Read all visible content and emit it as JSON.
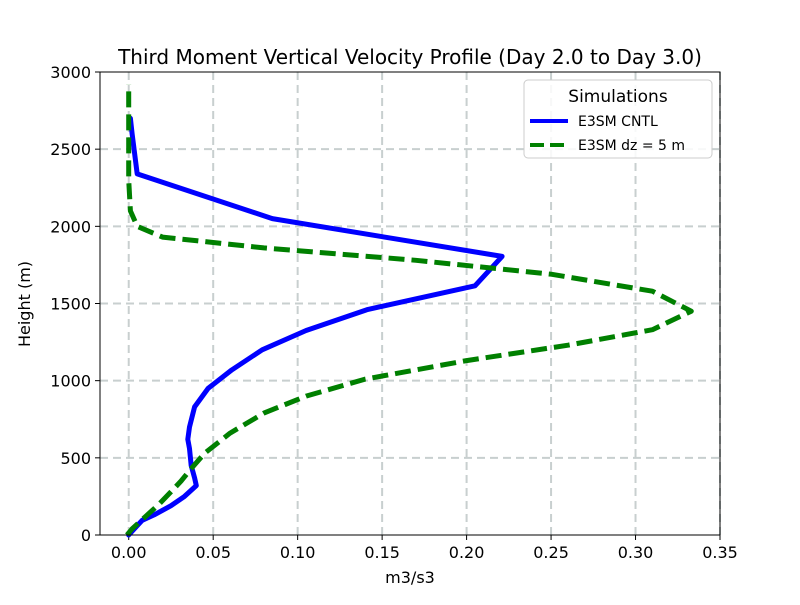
{
  "chart_data": {
    "type": "line",
    "title": "Third Moment Vertical Velocity Profile (Day 2.0 to Day 3.0)",
    "xlabel": "m3/s3",
    "ylabel": "Height (m)",
    "xlim": [
      -0.017,
      0.35
    ],
    "ylim": [
      0,
      3000
    ],
    "xticks": [
      0.0,
      0.05,
      0.1,
      0.15,
      0.2,
      0.25,
      0.3,
      0.35
    ],
    "xtick_labels": [
      "0.00",
      "0.05",
      "0.10",
      "0.15",
      "0.20",
      "0.25",
      "0.30",
      "0.35"
    ],
    "yticks": [
      0,
      500,
      1000,
      1500,
      2000,
      2500,
      3000
    ],
    "ytick_labels": [
      "0",
      "500",
      "1000",
      "1500",
      "2000",
      "2500",
      "3000"
    ],
    "grid": true,
    "legend": {
      "title": "Simulations",
      "location": "upper right"
    },
    "series": [
      {
        "name": "E3SM CNTL",
        "color": "#0000ff",
        "style": "solid",
        "points": [
          [
            0.0,
            0
          ],
          [
            0.005,
            60
          ],
          [
            0.008,
            95
          ],
          [
            0.015,
            130
          ],
          [
            0.025,
            190
          ],
          [
            0.033,
            250
          ],
          [
            0.04,
            320
          ],
          [
            0.039,
            370
          ],
          [
            0.037,
            450
          ],
          [
            0.036,
            560
          ],
          [
            0.035,
            620
          ],
          [
            0.036,
            700
          ],
          [
            0.039,
            830
          ],
          [
            0.047,
            950
          ],
          [
            0.061,
            1070
          ],
          [
            0.079,
            1200
          ],
          [
            0.105,
            1325
          ],
          [
            0.141,
            1460
          ],
          [
            0.205,
            1615
          ],
          [
            0.221,
            1805
          ],
          [
            0.085,
            2050
          ],
          [
            0.005,
            2340
          ],
          [
            0.002,
            2600
          ],
          [
            0.001,
            2700
          ]
        ]
      },
      {
        "name": "E3SM dz = 5 m",
        "color": "#008000",
        "style": "dashed",
        "points": [
          [
            -0.001,
            0
          ],
          [
            0.002,
            40
          ],
          [
            0.007,
            90
          ],
          [
            0.012,
            140
          ],
          [
            0.018,
            200
          ],
          [
            0.025,
            280
          ],
          [
            0.031,
            350
          ],
          [
            0.037,
            430
          ],
          [
            0.045,
            530
          ],
          [
            0.06,
            660
          ],
          [
            0.08,
            790
          ],
          [
            0.105,
            900
          ],
          [
            0.14,
            1010
          ],
          [
            0.2,
            1130
          ],
          [
            0.26,
            1230
          ],
          [
            0.31,
            1330
          ],
          [
            0.333,
            1450
          ],
          [
            0.31,
            1580
          ],
          [
            0.25,
            1690
          ],
          [
            0.17,
            1780
          ],
          [
            0.08,
            1860
          ],
          [
            0.02,
            1930
          ],
          [
            0.005,
            2000
          ],
          [
            0.001,
            2100
          ],
          [
            0.0,
            2300
          ],
          [
            0.0,
            2600
          ],
          [
            0.0,
            2920
          ]
        ]
      }
    ]
  }
}
